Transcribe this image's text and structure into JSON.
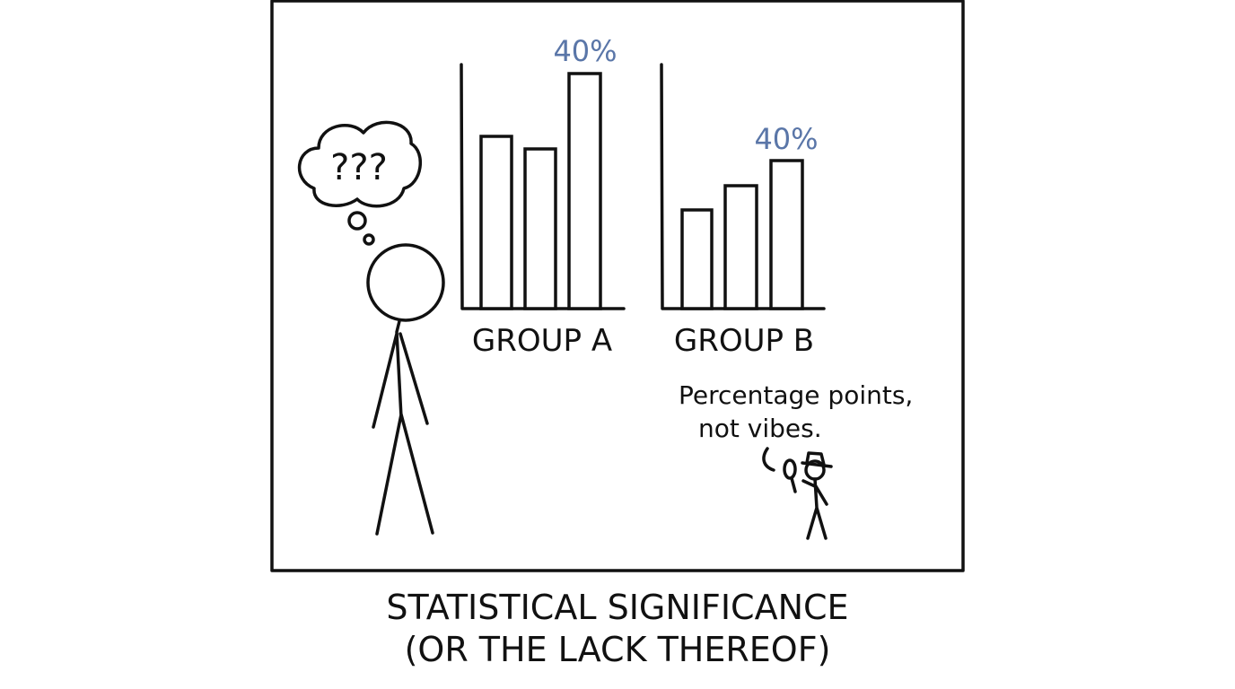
{
  "panel": {
    "thought": "???",
    "group_a": {
      "annotation": "40%",
      "label": "GROUP A"
    },
    "group_b": {
      "annotation": "40%",
      "label": "GROUP B"
    },
    "speech": [
      "Percentage points,",
      "not vibes."
    ]
  },
  "caption": [
    "STATISTICAL SIGNIFICANCE",
    "(OR THE LACK THEREOF)"
  ]
}
